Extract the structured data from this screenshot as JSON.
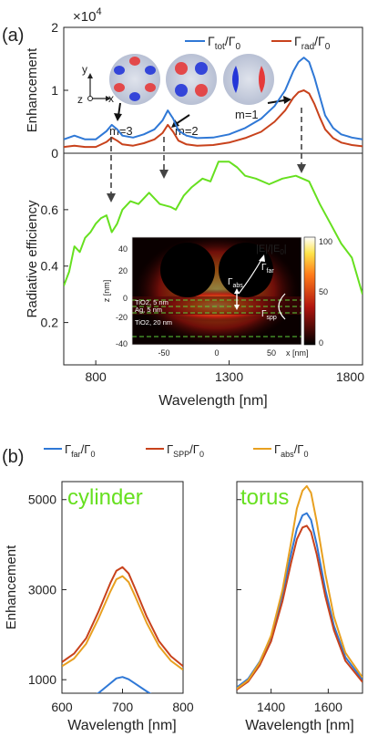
{
  "colors": {
    "blue": "#2f78d6",
    "red": "#c8421c",
    "orange": "#e8a020",
    "green": "#66e01f",
    "axis": "#222222"
  },
  "chart_data": [
    {
      "type": "line",
      "panel_label": "(a)",
      "ylabel": "Enhancement",
      "y_multiplier": "×10",
      "y_exponent": "4",
      "xlim": [
        680,
        1800
      ],
      "ylim": [
        0,
        2
      ],
      "yticks": [
        "0",
        "1",
        "2"
      ],
      "legend": {
        "position": "top-right",
        "items": [
          {
            "main": "Γ",
            "sub": "tot",
            "tail": "/Γ",
            "sub2": "0",
            "color": "blue"
          },
          {
            "main": "Γ",
            "sub": "rad",
            "tail": "/Γ",
            "sub2": "0",
            "color": "red"
          }
        ]
      },
      "series": [
        {
          "key": "tot",
          "color": "blue",
          "x": [
            680,
            720,
            760,
            800,
            840,
            860,
            880,
            900,
            940,
            980,
            1020,
            1050,
            1070,
            1090,
            1110,
            1140,
            1180,
            1240,
            1300,
            1360,
            1420,
            1470,
            1510,
            1540,
            1560,
            1580,
            1600,
            1620,
            1640,
            1660,
            1690,
            1720,
            1760,
            1800
          ],
          "y": [
            0.22,
            0.28,
            0.22,
            0.22,
            0.35,
            0.45,
            0.38,
            0.28,
            0.25,
            0.3,
            0.38,
            0.52,
            0.68,
            0.55,
            0.36,
            0.28,
            0.24,
            0.25,
            0.3,
            0.4,
            0.55,
            0.75,
            1.0,
            1.3,
            1.45,
            1.52,
            1.45,
            1.2,
            0.9,
            0.6,
            0.4,
            0.3,
            0.25,
            0.22
          ]
        },
        {
          "key": "rad",
          "color": "red",
          "x": [
            680,
            720,
            760,
            800,
            840,
            860,
            880,
            900,
            940,
            980,
            1020,
            1050,
            1070,
            1090,
            1110,
            1140,
            1180,
            1240,
            1300,
            1360,
            1420,
            1470,
            1510,
            1540,
            1560,
            1580,
            1600,
            1620,
            1640,
            1660,
            1690,
            1720,
            1760,
            1800
          ],
          "y": [
            0.1,
            0.12,
            0.1,
            0.1,
            0.18,
            0.25,
            0.2,
            0.14,
            0.12,
            0.16,
            0.22,
            0.32,
            0.45,
            0.34,
            0.2,
            0.14,
            0.12,
            0.13,
            0.17,
            0.24,
            0.34,
            0.5,
            0.68,
            0.88,
            0.97,
            1.0,
            0.95,
            0.78,
            0.57,
            0.38,
            0.24,
            0.17,
            0.13,
            0.11
          ]
        }
      ],
      "mode_labels": [
        "m=3",
        "m=2",
        "m=1"
      ],
      "axis_glyphs": {
        "y": "y",
        "z": "z",
        "x": "x"
      }
    },
    {
      "type": "line",
      "ylabel": "Radiative efficiency",
      "xlabel": "Wavelength [nm]",
      "xlim": [
        680,
        1800
      ],
      "ylim": [
        0.05,
        0.8
      ],
      "xticks": [
        800,
        1300,
        1800
      ],
      "xtick_labels": [
        "800",
        "1300",
        "1800"
      ],
      "yticks": [
        0.2,
        0.4,
        0.6
      ],
      "ytick_labels": [
        "0.2",
        "0.4",
        "0.6"
      ],
      "series": [
        {
          "key": "eff",
          "color": "green",
          "x": [
            680,
            700,
            720,
            740,
            760,
            780,
            800,
            820,
            840,
            860,
            880,
            900,
            930,
            960,
            1000,
            1040,
            1080,
            1100,
            1130,
            1160,
            1200,
            1230,
            1260,
            1280,
            1300,
            1330,
            1360,
            1400,
            1450,
            1500,
            1550,
            1600,
            1640,
            1680,
            1720,
            1760,
            1800
          ],
          "y": [
            0.33,
            0.38,
            0.47,
            0.45,
            0.5,
            0.52,
            0.55,
            0.57,
            0.58,
            0.52,
            0.55,
            0.6,
            0.63,
            0.62,
            0.66,
            0.62,
            0.61,
            0.6,
            0.65,
            0.68,
            0.71,
            0.7,
            0.77,
            0.77,
            0.77,
            0.75,
            0.72,
            0.71,
            0.69,
            0.71,
            0.72,
            0.7,
            0.62,
            0.55,
            0.48,
            0.43,
            0.3
          ]
        }
      ],
      "inset": {
        "title": "|E|/|E",
        "title_sub": "0",
        "title_end": "|",
        "zlabel": "z [nm]",
        "xlabel": "x [nm]",
        "z_ticks": [
          "40",
          "20",
          "0",
          "-20",
          "-40"
        ],
        "x_ticks": [
          "-50",
          "0",
          "50"
        ],
        "colorbar_ticks": [
          "100",
          "50",
          "0"
        ],
        "layer_labels": [
          "TiO2, 5 nm",
          "Ag, 5 nm",
          "TiO2, 20 nm"
        ],
        "gamma_far": "Γ",
        "gamma_far_sub": "far",
        "gamma_abs": "Γ",
        "gamma_abs_sub": "abs",
        "gamma_spp": "Γ",
        "gamma_spp_sub": "spp"
      }
    },
    {
      "type": "line",
      "panel_label": "(b)",
      "ylabel": "Enhancement",
      "xlabel": "Wavelength [nm]",
      "name_label": "cylinder",
      "xlim": [
        600,
        800
      ],
      "ylim": [
        700,
        5400
      ],
      "xticks": [
        600,
        700,
        800
      ],
      "yticks": [
        1000,
        3000,
        5000
      ],
      "legend": {
        "position": "top",
        "items": [
          {
            "main": "Γ",
            "sub": "far",
            "tail": "/Γ",
            "sub2": "0",
            "color": "blue"
          },
          {
            "main": "Γ",
            "sub": "SPP",
            "tail": "/Γ",
            "sub2": "0",
            "color": "red"
          },
          {
            "main": "Γ",
            "sub": "abs",
            "tail": "/Γ",
            "sub2": "0",
            "color": "orange"
          }
        ]
      },
      "series": [
        {
          "key": "far",
          "color": "blue",
          "x": [
            600,
            620,
            640,
            660,
            680,
            690,
            700,
            710,
            720,
            740,
            760,
            780,
            800
          ],
          "y": [
            420,
            460,
            540,
            700,
            920,
            1030,
            1060,
            1010,
            920,
            740,
            580,
            470,
            390
          ]
        },
        {
          "key": "spp",
          "color": "red",
          "x": [
            600,
            620,
            640,
            660,
            680,
            690,
            700,
            710,
            720,
            740,
            760,
            780,
            800
          ],
          "y": [
            1390,
            1580,
            1920,
            2500,
            3150,
            3420,
            3500,
            3360,
            3050,
            2400,
            1860,
            1520,
            1300
          ]
        },
        {
          "key": "abs",
          "color": "orange",
          "x": [
            600,
            620,
            640,
            660,
            680,
            690,
            700,
            710,
            720,
            740,
            760,
            780,
            800
          ],
          "y": [
            1300,
            1470,
            1800,
            2350,
            2960,
            3230,
            3300,
            3170,
            2880,
            2260,
            1750,
            1420,
            1220
          ]
        }
      ]
    },
    {
      "type": "line",
      "xlabel": "Wavelength [nm]",
      "name_label": "torus",
      "xlim": [
        1280,
        1720
      ],
      "ylim": [
        700,
        5400
      ],
      "xticks": [
        1400,
        1600
      ],
      "yticks": [
        1000,
        3000,
        5000
      ],
      "series": [
        {
          "key": "far",
          "color": "blue",
          "x": [
            1280,
            1320,
            1360,
            1400,
            1440,
            1470,
            1490,
            1510,
            1525,
            1540,
            1560,
            1590,
            1620,
            1660,
            1720
          ],
          "y": [
            830,
            1020,
            1400,
            1950,
            2900,
            3800,
            4350,
            4650,
            4700,
            4550,
            4000,
            3000,
            2200,
            1500,
            1000
          ]
        },
        {
          "key": "spp",
          "color": "red",
          "x": [
            1280,
            1320,
            1360,
            1400,
            1440,
            1470,
            1490,
            1510,
            1525,
            1540,
            1560,
            1590,
            1620,
            1660,
            1720
          ],
          "y": [
            780,
            960,
            1320,
            1850,
            2750,
            3600,
            4120,
            4380,
            4420,
            4280,
            3780,
            2850,
            2100,
            1420,
            950
          ]
        },
        {
          "key": "abs",
          "color": "orange",
          "x": [
            1280,
            1320,
            1360,
            1400,
            1440,
            1470,
            1490,
            1510,
            1525,
            1540,
            1560,
            1590,
            1620,
            1660,
            1720
          ],
          "y": [
            800,
            990,
            1380,
            1980,
            3000,
            4050,
            4800,
            5200,
            5300,
            5150,
            4500,
            3350,
            2400,
            1600,
            1050
          ]
        }
      ]
    }
  ]
}
